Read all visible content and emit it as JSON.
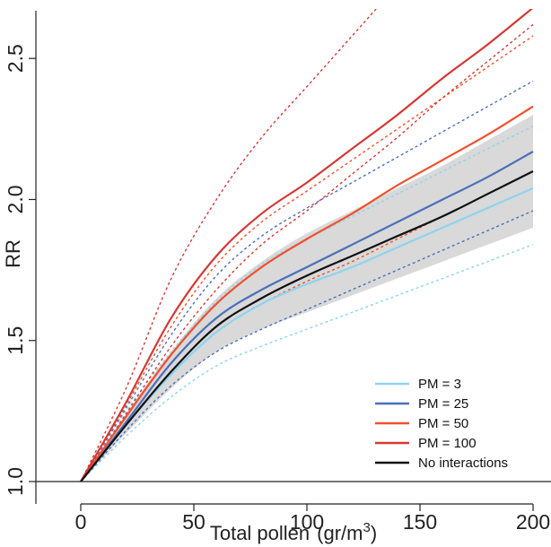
{
  "chart_data": {
    "type": "line",
    "xlabel": "Total pollen",
    "xlabel_unit": {
      "open": "(gr/m",
      "sup": "3",
      "close": ")"
    },
    "ylabel": "RR",
    "xlim": [
      0,
      200
    ],
    "ylim": [
      1.0,
      2.65
    ],
    "x_ticks": [
      0,
      50,
      100,
      150,
      200
    ],
    "x_tick_labels": [
      "0",
      "50",
      "100",
      "150",
      "200"
    ],
    "y_ticks": [
      1.0,
      1.5,
      2.0,
      2.5
    ],
    "y_tick_labels": [
      "1.0",
      "1.5",
      "2.0",
      "2.5"
    ],
    "reference_line": 1.0,
    "grid": false,
    "legend_position": "bottom-right",
    "x": [
      0,
      20,
      40,
      60,
      80,
      100,
      120,
      140,
      160,
      180,
      200
    ],
    "series": [
      {
        "name": "PM = 3",
        "color": "#8fd3ee",
        "values": [
          1.0,
          1.2,
          1.38,
          1.53,
          1.63,
          1.7,
          1.76,
          1.83,
          1.9,
          1.97,
          2.04
        ],
        "lower": [
          1.0,
          1.16,
          1.3,
          1.41,
          1.48,
          1.54,
          1.6,
          1.66,
          1.72,
          1.78,
          1.84
        ],
        "upper": [
          1.0,
          1.25,
          1.46,
          1.64,
          1.77,
          1.86,
          1.94,
          2.02,
          2.1,
          2.18,
          2.26
        ]
      },
      {
        "name": "PM = 25",
        "color": "#4b6fba",
        "values": [
          1.0,
          1.21,
          1.42,
          1.58,
          1.68,
          1.76,
          1.84,
          1.92,
          2.0,
          2.08,
          2.17
        ],
        "lower": [
          1.0,
          1.18,
          1.34,
          1.46,
          1.54,
          1.61,
          1.68,
          1.75,
          1.82,
          1.89,
          1.96
        ],
        "upper": [
          1.0,
          1.26,
          1.52,
          1.73,
          1.87,
          1.97,
          2.06,
          2.15,
          2.24,
          2.33,
          2.42
        ]
      },
      {
        "name": "PM = 50",
        "color": "#f0502e",
        "values": [
          1.0,
          1.23,
          1.45,
          1.63,
          1.76,
          1.86,
          1.95,
          2.05,
          2.14,
          2.23,
          2.33
        ],
        "lower": [
          1.0,
          1.2,
          1.38,
          1.53,
          1.63,
          1.71,
          1.78,
          1.86,
          1.94,
          2.02,
          2.1
        ],
        "upper": [
          1.0,
          1.27,
          1.55,
          1.77,
          1.92,
          2.03,
          2.14,
          2.25,
          2.36,
          2.47,
          2.58
        ]
      },
      {
        "name": "PM = 100",
        "color": "#d23a36",
        "values": [
          1.0,
          1.28,
          1.58,
          1.8,
          1.95,
          2.06,
          2.18,
          2.3,
          2.43,
          2.55,
          2.68
        ],
        "lower": [
          1.0,
          1.24,
          1.48,
          1.68,
          1.84,
          1.96,
          2.09,
          2.22,
          2.36,
          2.49,
          2.62
        ],
        "upper": [
          1.0,
          1.33,
          1.72,
          2.0,
          2.22,
          2.4,
          2.58,
          2.76,
          2.94,
          3.12,
          3.3
        ]
      },
      {
        "name": "No interactions",
        "color": "#111111",
        "values": [
          1.0,
          1.2,
          1.39,
          1.55,
          1.65,
          1.73,
          1.8,
          1.87,
          1.94,
          2.02,
          2.1
        ],
        "lower": [
          1.0,
          1.17,
          1.33,
          1.46,
          1.54,
          1.6,
          1.66,
          1.72,
          1.78,
          1.84,
          1.9
        ],
        "upper": [
          1.0,
          1.24,
          1.46,
          1.65,
          1.78,
          1.88,
          1.96,
          2.04,
          2.12,
          2.21,
          2.3
        ]
      }
    ],
    "band_color": "#d9d9d9"
  }
}
